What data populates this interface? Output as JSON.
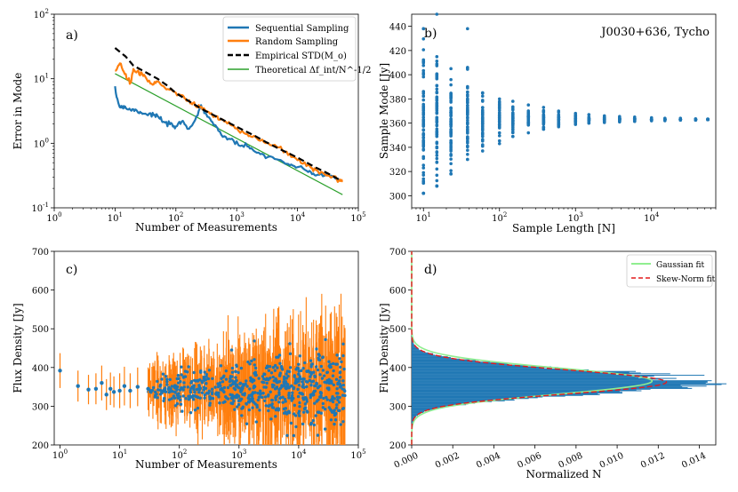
{
  "chart_data": [
    {
      "panel": "a)",
      "type": "line",
      "xlabel": "Number of Measurements",
      "ylabel": "Error in Mode",
      "xscale": "log",
      "yscale": "log",
      "xlim": [
        1,
        100000
      ],
      "ylim": [
        0.1,
        100
      ],
      "xticks": [
        "10^0",
        "10^1",
        "10^2",
        "10^3",
        "10^4",
        "10^5"
      ],
      "yticks": [
        "10^-1",
        "10^0",
        "10^1",
        "10^2"
      ],
      "legend": "top-right",
      "series": [
        {
          "name": "Sequential Sampling",
          "color": "#1f77b4",
          "style": "solid",
          "x": [
            10,
            12,
            14,
            16,
            20,
            25,
            30,
            40,
            50,
            60,
            80,
            100,
            130,
            160,
            200,
            260,
            300,
            400,
            500,
            700,
            1000,
            1500,
            2000,
            3000,
            5000,
            7000,
            10000,
            15000,
            20000,
            30000,
            50000
          ],
          "y": [
            6.5,
            3.6,
            3.8,
            3.4,
            3.3,
            3.1,
            2.9,
            2.8,
            2.6,
            2.2,
            1.9,
            1.8,
            2.2,
            1.7,
            2.1,
            3.8,
            3.0,
            2.1,
            1.5,
            1.2,
            1.0,
            0.85,
            0.78,
            0.62,
            0.55,
            0.48,
            0.42,
            0.36,
            0.32,
            0.34,
            0.27
          ]
        },
        {
          "name": "Random Sampling",
          "color": "#ff7f0e",
          "style": "solid",
          "x": [
            10,
            12,
            15,
            18,
            20,
            25,
            30,
            40,
            50,
            70,
            100,
            130,
            160,
            200,
            260,
            300,
            400,
            500,
            700,
            1000,
            1500,
            2000,
            3000,
            5000,
            7000,
            10000,
            15000,
            20000,
            30000,
            50000,
            55000
          ],
          "y": [
            13,
            17,
            11,
            8.5,
            14,
            12,
            11,
            8,
            9,
            7,
            6,
            5.5,
            4.5,
            4,
            3.6,
            3.3,
            2.8,
            2.4,
            2.1,
            1.7,
            1.4,
            1.25,
            1.0,
            0.85,
            0.7,
            0.55,
            0.45,
            0.38,
            0.32,
            0.27,
            0.26
          ]
        },
        {
          "name": "Empirical STD(M_o)",
          "color": "#000000",
          "style": "dashed",
          "x": [
            10,
            15,
            20,
            30,
            50,
            70,
            100,
            200,
            300,
            500,
            1000,
            2000,
            3000,
            5000,
            10000,
            20000,
            30000,
            50000
          ],
          "y": [
            30,
            22,
            16,
            13,
            10,
            8,
            6,
            4,
            3.2,
            2.5,
            1.8,
            1.3,
            1.05,
            0.82,
            0.6,
            0.42,
            0.35,
            0.27
          ]
        },
        {
          "name": "Theoretical Δf_int/N^-1/2",
          "color": "#2ca02c",
          "style": "solid",
          "x": [
            10,
            55000
          ],
          "y": [
            12,
            0.16
          ]
        }
      ]
    },
    {
      "panel": "b)",
      "type": "scatter",
      "annotation": "J0030+636, Tycho",
      "xlabel": "Sample Length [N]",
      "ylabel": "Sample Mode [Jy]",
      "xscale": "log",
      "xlim": [
        7,
        70000
      ],
      "ylim": [
        290,
        450
      ],
      "xticks": [
        "10^1",
        "10^2",
        "10^3",
        "10^4"
      ],
      "yticks": [
        300,
        320,
        340,
        360,
        380,
        400,
        420,
        440
      ],
      "color": "#1f77b4",
      "columns": [
        {
          "n": 10,
          "min": 302,
          "max": 438
        },
        {
          "n": 15,
          "min": 308,
          "max": 450
        },
        {
          "n": 23,
          "min": 318,
          "max": 405
        },
        {
          "n": 38,
          "min": 330,
          "max": 438
        },
        {
          "n": 60,
          "min": 337,
          "max": 385
        },
        {
          "n": 100,
          "min": 343,
          "max": 380
        },
        {
          "n": 150,
          "min": 349,
          "max": 378
        },
        {
          "n": 240,
          "min": 352,
          "max": 375
        },
        {
          "n": 380,
          "min": 355,
          "max": 373
        },
        {
          "n": 600,
          "min": 357,
          "max": 370
        },
        {
          "n": 1000,
          "min": 359,
          "max": 368
        },
        {
          "n": 1500,
          "min": 360,
          "max": 367
        },
        {
          "n": 2400,
          "min": 360.5,
          "max": 366
        },
        {
          "n": 3800,
          "min": 361,
          "max": 365.5
        },
        {
          "n": 6000,
          "min": 361.5,
          "max": 365
        },
        {
          "n": 10000,
          "min": 362,
          "max": 364.5
        },
        {
          "n": 15000,
          "min": 362,
          "max": 364
        },
        {
          "n": 24000,
          "min": 362.5,
          "max": 364
        },
        {
          "n": 38000,
          "min": 362.5,
          "max": 363.5
        },
        {
          "n": 55000,
          "min": 362.8,
          "max": 363.4
        }
      ]
    },
    {
      "panel": "c)",
      "type": "scatter",
      "xlabel": "Number of Measurements",
      "ylabel": "Flux Density [Jy]",
      "xscale": "log",
      "xlim": [
        0.8,
        100000
      ],
      "ylim": [
        200,
        700
      ],
      "xticks": [
        "10^0",
        "10^1",
        "10^2",
        "10^3",
        "10^4",
        "10^5"
      ],
      "yticks": [
        200,
        300,
        400,
        500,
        600,
        700
      ],
      "point_color": "#1f77b4",
      "errorbar_color": "#ff7f0e",
      "points": [
        {
          "x": 1,
          "y": 392,
          "err": 45
        },
        {
          "x": 2,
          "y": 352,
          "err": 40
        },
        {
          "x": 3,
          "y": 343,
          "err": 38
        },
        {
          "x": 4,
          "y": 345,
          "err": 40
        },
        {
          "x": 5,
          "y": 360,
          "err": 45
        },
        {
          "x": 6,
          "y": 330,
          "err": 40
        },
        {
          "x": 7,
          "y": 345,
          "err": 42
        },
        {
          "x": 8,
          "y": 337,
          "err": 40
        },
        {
          "x": 10,
          "y": 340,
          "err": 45
        },
        {
          "x": 12,
          "y": 352,
          "err": 50
        },
        {
          "x": 15,
          "y": 340,
          "err": 45
        },
        {
          "x": 20,
          "y": 350,
          "err": 50
        },
        {
          "x": 30,
          "y": 345,
          "err": 55
        }
      ],
      "dense_range": [
        30,
        60000
      ]
    },
    {
      "panel": "d)",
      "type": "bar",
      "orientation": "horizontal",
      "xlabel": "Normalized N",
      "ylabel": "Flux Density [Jy]",
      "xlim": [
        0,
        0.0148
      ],
      "ylim": [
        200,
        700
      ],
      "xticks": [
        "0.000",
        "0.002",
        "0.004",
        "0.006",
        "0.008",
        "0.010",
        "0.012",
        "0.014"
      ],
      "yticks": [
        200,
        300,
        400,
        500,
        600,
        700
      ],
      "hist_color": "#1f77b4",
      "peak_value": 0.0144,
      "peak_flux": 362,
      "legend": "top-right",
      "fits": [
        {
          "name": "Gaussian fit",
          "color": "#90ee90",
          "style": "solid",
          "mu": 365,
          "sigma": 34,
          "peak": 0.0117
        },
        {
          "name": "Skew-Norm fit",
          "color": "#e41a1c",
          "style": "dashed",
          "mu": 362,
          "sigma": 32,
          "peak": 0.0124
        }
      ]
    }
  ]
}
